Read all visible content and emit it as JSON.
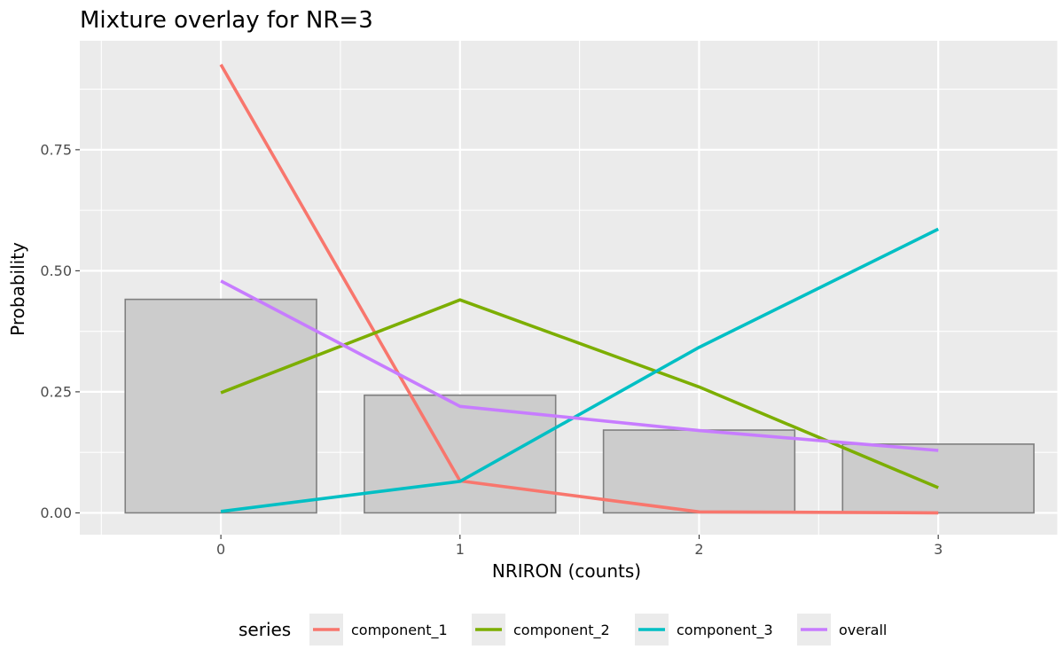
{
  "chart_data": {
    "type": "bar",
    "title": "Mixture overlay for NR=3",
    "xlabel": "NRIRON (counts)",
    "ylabel": "Probability",
    "x": [
      0,
      1,
      2,
      3
    ],
    "x_tick_labels": [
      "0",
      "1",
      "2",
      "3"
    ],
    "xlim": [
      -0.59,
      3.5
    ],
    "ylim": [
      -0.045,
      0.975
    ],
    "y_ticks": [
      0,
      0.25,
      0.5,
      0.75
    ],
    "y_tick_labels": [
      "0.00",
      "0.25",
      "0.50",
      "0.75"
    ],
    "bars": {
      "values": [
        0.441,
        0.243,
        0.171,
        0.142
      ],
      "fill": "#cccccc",
      "stroke": "#7f7f7f"
    },
    "series": [
      {
        "name": "component_1",
        "color": "#F8766D",
        "values": [
          0.926,
          0.066,
          0.002,
          0.0
        ]
      },
      {
        "name": "component_2",
        "color": "#7CAE00",
        "values": [
          0.248,
          0.44,
          0.26,
          0.052
        ]
      },
      {
        "name": "component_3",
        "color": "#00BFC4",
        "values": [
          0.003,
          0.065,
          0.342,
          0.586
        ]
      },
      {
        "name": "overall",
        "color": "#C77CFF",
        "values": [
          0.479,
          0.22,
          0.17,
          0.129
        ]
      }
    ],
    "legend": {
      "title": "series",
      "position": "bottom"
    },
    "grid": true,
    "panel_background": "#EBEBEB"
  }
}
